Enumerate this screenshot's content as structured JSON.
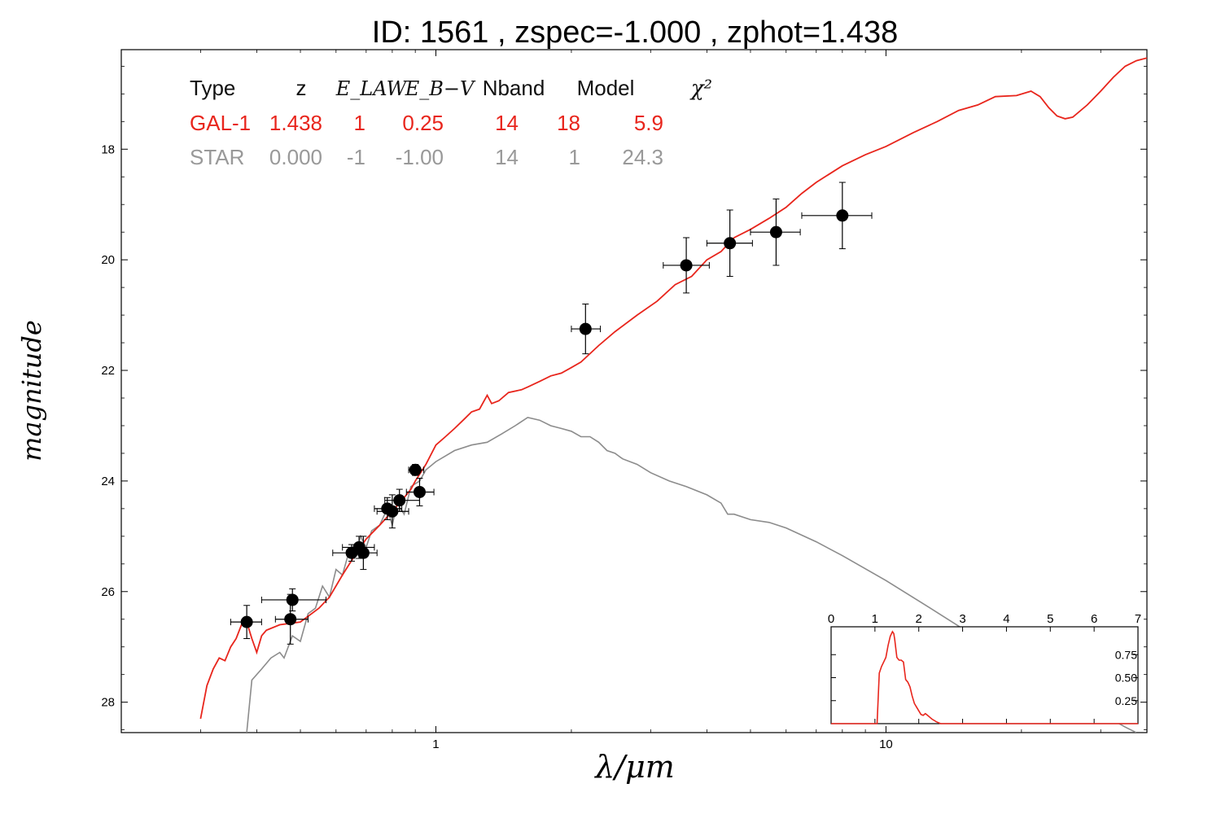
{
  "chart_data": [
    {
      "type": "scatter",
      "title": "ID:  1561  , zspec=-1.000 , zphot=1.438",
      "xlabel": "λ/μm",
      "ylabel": "magnitude",
      "x_scale": "log",
      "y_inverted": true,
      "xlim": [
        0.2,
        38
      ],
      "ylim": [
        16.2,
        28.55
      ],
      "x_ticks": [
        {
          "value": 1,
          "label": "1"
        },
        {
          "value": 10,
          "label": "10"
        }
      ],
      "y_ticks": [
        {
          "value": 18,
          "label": "18"
        },
        {
          "value": 20,
          "label": "20"
        },
        {
          "value": 22,
          "label": "22"
        },
        {
          "value": 24,
          "label": "24"
        },
        {
          "value": 26,
          "label": "26"
        },
        {
          "value": 28,
          "label": "28"
        }
      ],
      "info_table": {
        "headers": [
          "Type",
          "z",
          "E_LAW",
          "E_B−V",
          "Nband",
          "Model",
          "χ²"
        ],
        "rows": [
          {
            "name": "GAL-1",
            "z": "1.438",
            "law": "1",
            "ebv": "0.25",
            "nband": "14",
            "model": "18",
            "chi2": "5.9",
            "color": "#e8251c"
          },
          {
            "name": "STAR",
            "z": "0.000",
            "law": "-1",
            "ebv": "-1.00",
            "nband": "14",
            "model": "1",
            "chi2": "24.3",
            "color": "#999999"
          }
        ]
      },
      "points": [
        {
          "x": 0.38,
          "y": 26.55,
          "yerr": 0.3,
          "xerr": [
            0.35,
            0.41
          ]
        },
        {
          "x": 0.475,
          "y": 26.5,
          "yerr": 0.45,
          "xerr": [
            0.44,
            0.52
          ]
        },
        {
          "x": 0.48,
          "y": 26.15,
          "yerr": 0.2,
          "xerr": [
            0.41,
            0.57
          ]
        },
        {
          "x": 0.65,
          "y": 25.3,
          "yerr": 0.15,
          "xerr": [
            0.59,
            0.7
          ]
        },
        {
          "x": 0.675,
          "y": 25.2,
          "yerr": 0.2,
          "xerr": [
            0.62,
            0.73
          ]
        },
        {
          "x": 0.69,
          "y": 25.3,
          "yerr": 0.3,
          "xerr": [
            0.64,
            0.74
          ]
        },
        {
          "x": 0.78,
          "y": 24.5,
          "yerr": 0.2,
          "xerr": [
            0.73,
            0.84
          ]
        },
        {
          "x": 0.8,
          "y": 24.55,
          "yerr": 0.3,
          "xerr": [
            0.74,
            0.87
          ]
        },
        {
          "x": 0.83,
          "y": 24.35,
          "yerr": 0.2,
          "xerr": [
            0.77,
            0.92
          ]
        },
        {
          "x": 0.9,
          "y": 23.8,
          "yerr": 0.1,
          "xerr": [
            0.87,
            0.94
          ]
        },
        {
          "x": 0.92,
          "y": 24.2,
          "yerr": 0.25,
          "xerr": [
            0.86,
            0.99
          ]
        },
        {
          "x": 2.15,
          "y": 21.25,
          "yerr": 0.45,
          "xerr": [
            2.0,
            2.32
          ]
        },
        {
          "x": 3.6,
          "y": 20.1,
          "yerr": 0.5,
          "xerr": [
            3.2,
            4.05
          ]
        },
        {
          "x": 4.5,
          "y": 19.7,
          "yerr": 0.6,
          "xerr": [
            4.0,
            5.05
          ]
        },
        {
          "x": 5.7,
          "y": 19.5,
          "yerr": 0.6,
          "xerr": [
            5.0,
            6.45
          ]
        },
        {
          "x": 8.0,
          "y": 19.2,
          "yerr": 0.6,
          "xerr": [
            6.5,
            9.3
          ]
        }
      ],
      "series": [
        {
          "name": "GAL-1",
          "color": "#e8251c",
          "points": [
            [
              0.3,
              28.3
            ],
            [
              0.31,
              27.7
            ],
            [
              0.32,
              27.4
            ],
            [
              0.33,
              27.2
            ],
            [
              0.34,
              27.25
            ],
            [
              0.35,
              27.0
            ],
            [
              0.36,
              26.85
            ],
            [
              0.37,
              26.6
            ],
            [
              0.38,
              26.55
            ],
            [
              0.39,
              26.85
            ],
            [
              0.4,
              27.1
            ],
            [
              0.41,
              26.8
            ],
            [
              0.42,
              26.7
            ],
            [
              0.45,
              26.6
            ],
            [
              0.5,
              26.55
            ],
            [
              0.55,
              26.3
            ],
            [
              0.58,
              26.1
            ],
            [
              0.62,
              25.7
            ],
            [
              0.66,
              25.35
            ],
            [
              0.7,
              25.05
            ],
            [
              0.75,
              24.8
            ],
            [
              0.8,
              24.55
            ],
            [
              0.85,
              24.3
            ],
            [
              0.88,
              24.15
            ],
            [
              0.9,
              24.0
            ],
            [
              0.95,
              23.7
            ],
            [
              1.0,
              23.35
            ],
            [
              1.05,
              23.2
            ],
            [
              1.1,
              23.05
            ],
            [
              1.15,
              22.9
            ],
            [
              1.2,
              22.75
            ],
            [
              1.25,
              22.7
            ],
            [
              1.3,
              22.45
            ],
            [
              1.33,
              22.6
            ],
            [
              1.38,
              22.55
            ],
            [
              1.45,
              22.4
            ],
            [
              1.55,
              22.35
            ],
            [
              1.6,
              22.3
            ],
            [
              1.7,
              22.2
            ],
            [
              1.8,
              22.1
            ],
            [
              1.9,
              22.05
            ],
            [
              2.0,
              21.95
            ],
            [
              2.1,
              21.85
            ],
            [
              2.3,
              21.55
            ],
            [
              2.5,
              21.3
            ],
            [
              2.8,
              21.0
            ],
            [
              3.1,
              20.75
            ],
            [
              3.4,
              20.45
            ],
            [
              3.7,
              20.3
            ],
            [
              4.0,
              20.0
            ],
            [
              4.3,
              19.85
            ],
            [
              4.6,
              19.6
            ],
            [
              5.0,
              19.45
            ],
            [
              5.5,
              19.25
            ],
            [
              6.0,
              19.05
            ],
            [
              6.5,
              18.8
            ],
            [
              7.0,
              18.6
            ],
            [
              8.0,
              18.3
            ],
            [
              9.0,
              18.1
            ],
            [
              10.0,
              17.95
            ],
            [
              11.5,
              17.7
            ],
            [
              13.0,
              17.5
            ],
            [
              14.5,
              17.3
            ],
            [
              16.0,
              17.2
            ],
            [
              17.5,
              17.05
            ],
            [
              19.5,
              17.03
            ],
            [
              21.0,
              16.95
            ],
            [
              22.0,
              17.05
            ],
            [
              23.0,
              17.25
            ],
            [
              24.0,
              17.4
            ],
            [
              25.0,
              17.45
            ],
            [
              26.0,
              17.42
            ],
            [
              28.0,
              17.2
            ],
            [
              30.0,
              16.95
            ],
            [
              32.0,
              16.7
            ],
            [
              34.0,
              16.5
            ],
            [
              36.0,
              16.4
            ],
            [
              38.0,
              16.35
            ]
          ]
        },
        {
          "name": "STAR",
          "color": "#8c8c8c",
          "points": [
            [
              0.38,
              28.55
            ],
            [
              0.39,
              27.6
            ],
            [
              0.41,
              27.4
            ],
            [
              0.43,
              27.2
            ],
            [
              0.45,
              27.1
            ],
            [
              0.46,
              27.2
            ],
            [
              0.48,
              26.8
            ],
            [
              0.5,
              26.9
            ],
            [
              0.52,
              26.4
            ],
            [
              0.54,
              26.3
            ],
            [
              0.56,
              25.9
            ],
            [
              0.58,
              26.1
            ],
            [
              0.6,
              25.6
            ],
            [
              0.62,
              25.7
            ],
            [
              0.64,
              25.3
            ],
            [
              0.66,
              25.4
            ],
            [
              0.68,
              25.0
            ],
            [
              0.7,
              25.2
            ],
            [
              0.72,
              24.9
            ],
            [
              0.75,
              24.8
            ],
            [
              0.78,
              24.5
            ],
            [
              0.8,
              24.8
            ],
            [
              0.82,
              24.4
            ],
            [
              0.85,
              24.6
            ],
            [
              0.88,
              24.1
            ],
            [
              0.92,
              24.0
            ],
            [
              0.95,
              23.8
            ],
            [
              1.0,
              23.65
            ],
            [
              1.1,
              23.45
            ],
            [
              1.2,
              23.35
            ],
            [
              1.3,
              23.3
            ],
            [
              1.4,
              23.15
            ],
            [
              1.5,
              23.0
            ],
            [
              1.6,
              22.85
            ],
            [
              1.7,
              22.9
            ],
            [
              1.8,
              23.0
            ],
            [
              1.9,
              23.05
            ],
            [
              2.0,
              23.1
            ],
            [
              2.1,
              23.2
            ],
            [
              2.2,
              23.2
            ],
            [
              2.3,
              23.3
            ],
            [
              2.4,
              23.45
            ],
            [
              2.5,
              23.5
            ],
            [
              2.6,
              23.6
            ],
            [
              2.8,
              23.7
            ],
            [
              3.0,
              23.85
            ],
            [
              3.3,
              24.0
            ],
            [
              3.6,
              24.1
            ],
            [
              4.0,
              24.25
            ],
            [
              4.3,
              24.4
            ],
            [
              4.45,
              24.6
            ],
            [
              4.6,
              24.6
            ],
            [
              5.0,
              24.7
            ],
            [
              5.5,
              24.75
            ],
            [
              6.0,
              24.85
            ],
            [
              7.0,
              25.1
            ],
            [
              8.0,
              25.35
            ],
            [
              10.0,
              25.8
            ],
            [
              12.0,
              26.2
            ],
            [
              15.0,
              26.7
            ],
            [
              18.0,
              27.1
            ],
            [
              22.0,
              27.55
            ],
            [
              26.0,
              27.9
            ],
            [
              30.0,
              28.2
            ],
            [
              34.0,
              28.45
            ],
            [
              36.0,
              28.55
            ]
          ]
        }
      ]
    },
    {
      "type": "line",
      "title": "",
      "xlim": [
        0,
        7
      ],
      "ylim": [
        0,
        1.0
      ],
      "x_ticks": [
        "0",
        "1",
        "2",
        "3",
        "4",
        "5",
        "6",
        "7"
      ],
      "y_ticks": [
        {
          "value": 0.25,
          "label": "0.25"
        },
        {
          "value": 0.5,
          "label": "0.50"
        },
        {
          "value": 0.75,
          "label": "0.75"
        }
      ],
      "series": [
        {
          "color": "#e8251c",
          "points": [
            [
              0.0,
              0.0
            ],
            [
              1.0,
              0.0
            ],
            [
              1.05,
              0.0
            ],
            [
              1.1,
              0.55
            ],
            [
              1.15,
              0.62
            ],
            [
              1.2,
              0.67
            ],
            [
              1.25,
              0.72
            ],
            [
              1.3,
              0.85
            ],
            [
              1.35,
              0.95
            ],
            [
              1.4,
              1.0
            ],
            [
              1.43,
              0.98
            ],
            [
              1.45,
              0.92
            ],
            [
              1.5,
              0.72
            ],
            [
              1.55,
              0.69
            ],
            [
              1.6,
              0.69
            ],
            [
              1.65,
              0.67
            ],
            [
              1.7,
              0.48
            ],
            [
              1.75,
              0.45
            ],
            [
              1.8,
              0.4
            ],
            [
              1.85,
              0.3
            ],
            [
              1.9,
              0.22
            ],
            [
              1.95,
              0.18
            ],
            [
              2.0,
              0.14
            ],
            [
              2.05,
              0.1
            ],
            [
              2.1,
              0.09
            ],
            [
              2.15,
              0.11
            ],
            [
              2.2,
              0.09
            ],
            [
              2.3,
              0.05
            ],
            [
              2.4,
              0.02
            ],
            [
              2.5,
              0.0
            ],
            [
              7.0,
              0.0
            ]
          ]
        }
      ]
    }
  ]
}
